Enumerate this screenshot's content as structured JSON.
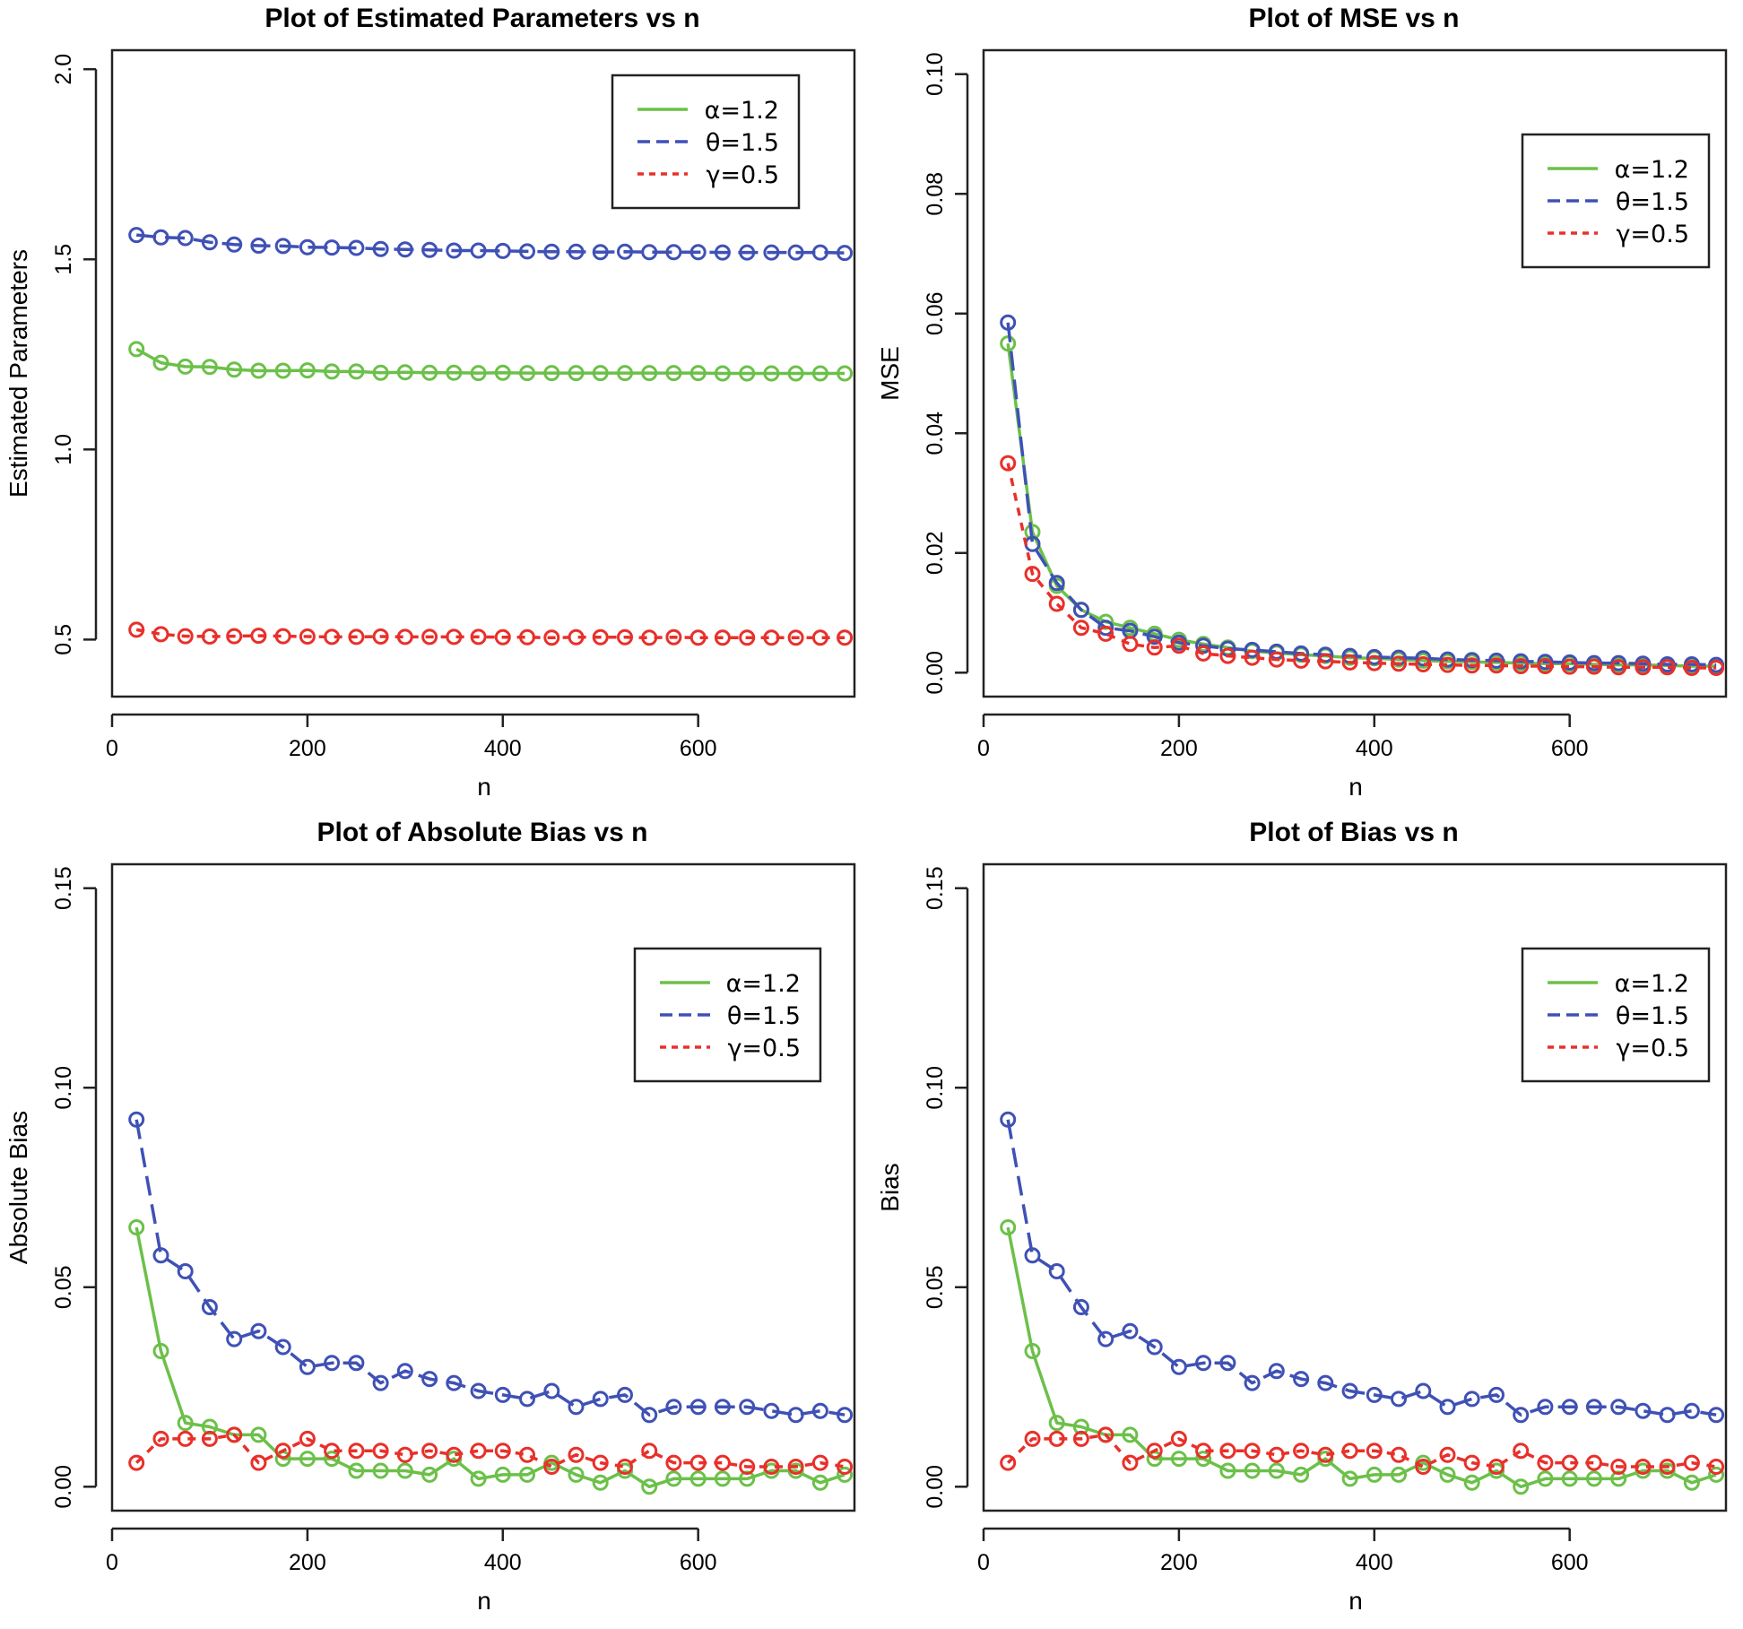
{
  "chart_data": [
    {
      "type": "line",
      "title": "Plot of Estimated Parameters vs n",
      "xlabel": "n",
      "ylabel": "Estimated Parameters",
      "xlim": [
        0,
        760
      ],
      "ylim": [
        0.35,
        2.05
      ],
      "xticks": [
        0,
        200,
        400,
        600
      ],
      "xtick_labels": [
        "0",
        "200",
        "400",
        "600"
      ],
      "yticks": [
        0.5,
        1.0,
        1.5,
        2.0
      ],
      "ytick_labels": [
        "0.5",
        "1.0",
        "1.5",
        "2.0"
      ],
      "legend_position": "top-right",
      "x": [
        25,
        50,
        75,
        100,
        125,
        150,
        175,
        200,
        225,
        250,
        275,
        300,
        325,
        350,
        375,
        400,
        425,
        450,
        475,
        500,
        525,
        550,
        575,
        600,
        625,
        650,
        675,
        700,
        725,
        750
      ],
      "series": [
        {
          "name": "α=1.2",
          "color": "#6cc04a",
          "dash": "solid",
          "values": [
            1.264,
            1.228,
            1.218,
            1.217,
            1.21,
            1.207,
            1.207,
            1.208,
            1.205,
            1.205,
            1.202,
            1.203,
            1.202,
            1.202,
            1.201,
            1.202,
            1.201,
            1.201,
            1.201,
            1.201,
            1.201,
            1.201,
            1.201,
            1.201,
            1.2,
            1.2,
            1.2,
            1.2,
            1.2,
            1.2
          ]
        },
        {
          "name": "θ=1.5",
          "color": "#3f51b5",
          "dash": "long",
          "values": [
            1.564,
            1.558,
            1.556,
            1.545,
            1.539,
            1.536,
            1.535,
            1.532,
            1.531,
            1.53,
            1.527,
            1.526,
            1.525,
            1.523,
            1.523,
            1.522,
            1.521,
            1.52,
            1.52,
            1.519,
            1.52,
            1.519,
            1.519,
            1.519,
            1.518,
            1.518,
            1.518,
            1.518,
            1.518,
            1.517
          ]
        },
        {
          "name": "γ=0.5",
          "color": "#e8302a",
          "dash": "short",
          "values": [
            0.526,
            0.514,
            0.509,
            0.508,
            0.509,
            0.51,
            0.509,
            0.508,
            0.507,
            0.507,
            0.508,
            0.507,
            0.507,
            0.507,
            0.507,
            0.506,
            0.506,
            0.505,
            0.506,
            0.506,
            0.506,
            0.505,
            0.506,
            0.505,
            0.505,
            0.505,
            0.505,
            0.505,
            0.505,
            0.505
          ]
        }
      ]
    },
    {
      "type": "line",
      "title": "Plot of MSE vs n",
      "xlabel": "n",
      "ylabel": "MSE",
      "xlim": [
        0,
        760
      ],
      "ylim": [
        -0.004,
        0.104
      ],
      "xticks": [
        0,
        200,
        400,
        600
      ],
      "xtick_labels": [
        "0",
        "200",
        "400",
        "600"
      ],
      "yticks": [
        0.0,
        0.02,
        0.04,
        0.06,
        0.08,
        0.1
      ],
      "ytick_labels": [
        "0.00",
        "0.02",
        "0.04",
        "0.06",
        "0.08",
        "0.10"
      ],
      "legend_position": "top-right",
      "x": [
        25,
        50,
        75,
        100,
        125,
        150,
        175,
        200,
        225,
        250,
        275,
        300,
        325,
        350,
        375,
        400,
        425,
        450,
        475,
        500,
        525,
        550,
        575,
        600,
        625,
        650,
        675,
        700,
        725,
        750
      ],
      "series": [
        {
          "name": "α=1.2",
          "color": "#6cc04a",
          "dash": "solid",
          "values": [
            0.055,
            0.0235,
            0.0145,
            0.0105,
            0.0085,
            0.0075,
            0.0065,
            0.0055,
            0.0048,
            0.0042,
            0.0036,
            0.0033,
            0.003,
            0.0028,
            0.0025,
            0.0024,
            0.0022,
            0.002,
            0.0019,
            0.0018,
            0.0017,
            0.0016,
            0.0015,
            0.0015,
            0.0014,
            0.0013,
            0.0013,
            0.0012,
            0.0011,
            0.0011
          ]
        },
        {
          "name": "θ=1.5",
          "color": "#3f51b5",
          "dash": "long",
          "values": [
            0.0585,
            0.0215,
            0.015,
            0.0105,
            0.0075,
            0.007,
            0.006,
            0.005,
            0.0045,
            0.004,
            0.0038,
            0.0035,
            0.0032,
            0.003,
            0.0028,
            0.0026,
            0.0025,
            0.0024,
            0.0022,
            0.0021,
            0.002,
            0.0019,
            0.0018,
            0.0017,
            0.0016,
            0.0016,
            0.0015,
            0.0014,
            0.0014,
            0.0013
          ]
        },
        {
          "name": "γ=0.5",
          "color": "#e8302a",
          "dash": "short",
          "values": [
            0.035,
            0.0165,
            0.0115,
            0.0075,
            0.0065,
            0.0048,
            0.0042,
            0.0045,
            0.0032,
            0.0028,
            0.0025,
            0.0022,
            0.002,
            0.0019,
            0.0017,
            0.0016,
            0.0015,
            0.0014,
            0.0013,
            0.0012,
            0.0012,
            0.0011,
            0.0011,
            0.001,
            0.001,
            0.0009,
            0.0009,
            0.0009,
            0.0008,
            0.0008
          ]
        }
      ]
    },
    {
      "type": "line",
      "title": "Plot of Absolute Bias vs n",
      "xlabel": "n",
      "ylabel": "Absolute Bias",
      "xlim": [
        0,
        760
      ],
      "ylim": [
        -0.006,
        0.156
      ],
      "xticks": [
        0,
        200,
        400,
        600
      ],
      "xtick_labels": [
        "0",
        "200",
        "400",
        "600"
      ],
      "yticks": [
        0.0,
        0.05,
        0.1,
        0.15
      ],
      "ytick_labels": [
        "0.00",
        "0.05",
        "0.10",
        "0.15"
      ],
      "legend_position": "top-right",
      "x": [
        25,
        50,
        75,
        100,
        125,
        150,
        175,
        200,
        225,
        250,
        275,
        300,
        325,
        350,
        375,
        400,
        425,
        450,
        475,
        500,
        525,
        550,
        575,
        600,
        625,
        650,
        675,
        700,
        725,
        750
      ],
      "series": [
        {
          "name": "α=1.2",
          "color": "#6cc04a",
          "dash": "solid",
          "values": [
            0.065,
            0.034,
            0.016,
            0.015,
            0.013,
            0.013,
            0.007,
            0.007,
            0.007,
            0.004,
            0.004,
            0.004,
            0.003,
            0.007,
            0.002,
            0.003,
            0.003,
            0.006,
            0.003,
            0.001,
            0.004,
            0.0,
            0.002,
            0.002,
            0.002,
            0.002,
            0.004,
            0.004,
            0.001,
            0.003
          ]
        },
        {
          "name": "θ=1.5",
          "color": "#3f51b5",
          "dash": "long",
          "values": [
            0.092,
            0.058,
            0.054,
            0.045,
            0.037,
            0.039,
            0.035,
            0.03,
            0.031,
            0.031,
            0.026,
            0.029,
            0.027,
            0.026,
            0.024,
            0.023,
            0.022,
            0.024,
            0.02,
            0.022,
            0.023,
            0.018,
            0.02,
            0.02,
            0.02,
            0.02,
            0.019,
            0.018,
            0.019,
            0.018
          ]
        },
        {
          "name": "γ=0.5",
          "color": "#e8302a",
          "dash": "short",
          "values": [
            0.006,
            0.012,
            0.012,
            0.012,
            0.013,
            0.006,
            0.009,
            0.012,
            0.009,
            0.009,
            0.009,
            0.008,
            0.009,
            0.008,
            0.009,
            0.009,
            0.008,
            0.005,
            0.008,
            0.006,
            0.005,
            0.009,
            0.006,
            0.006,
            0.006,
            0.005,
            0.005,
            0.005,
            0.006,
            0.005
          ]
        }
      ]
    },
    {
      "type": "line",
      "title": "Plot of Bias vs n",
      "xlabel": "n",
      "ylabel": "Bias",
      "xlim": [
        0,
        760
      ],
      "ylim": [
        -0.006,
        0.156
      ],
      "xticks": [
        0,
        200,
        400,
        600
      ],
      "xtick_labels": [
        "0",
        "200",
        "400",
        "600"
      ],
      "yticks": [
        0.0,
        0.05,
        0.1,
        0.15
      ],
      "ytick_labels": [
        "0.00",
        "0.05",
        "0.10",
        "0.15"
      ],
      "legend_position": "top-right",
      "x": [
        25,
        50,
        75,
        100,
        125,
        150,
        175,
        200,
        225,
        250,
        275,
        300,
        325,
        350,
        375,
        400,
        425,
        450,
        475,
        500,
        525,
        550,
        575,
        600,
        625,
        650,
        675,
        700,
        725,
        750
      ],
      "series": [
        {
          "name": "α=1.2",
          "color": "#6cc04a",
          "dash": "solid",
          "values": [
            0.065,
            0.034,
            0.016,
            0.015,
            0.013,
            0.013,
            0.007,
            0.007,
            0.007,
            0.004,
            0.004,
            0.004,
            0.003,
            0.007,
            0.002,
            0.003,
            0.003,
            0.006,
            0.003,
            0.001,
            0.004,
            0.0,
            0.002,
            0.002,
            0.002,
            0.002,
            0.004,
            0.004,
            0.001,
            0.003
          ]
        },
        {
          "name": "θ=1.5",
          "color": "#3f51b5",
          "dash": "long",
          "values": [
            0.092,
            0.058,
            0.054,
            0.045,
            0.037,
            0.039,
            0.035,
            0.03,
            0.031,
            0.031,
            0.026,
            0.029,
            0.027,
            0.026,
            0.024,
            0.023,
            0.022,
            0.024,
            0.02,
            0.022,
            0.023,
            0.018,
            0.02,
            0.02,
            0.02,
            0.02,
            0.019,
            0.018,
            0.019,
            0.018
          ]
        },
        {
          "name": "γ=0.5",
          "color": "#e8302a",
          "dash": "short",
          "values": [
            0.006,
            0.012,
            0.012,
            0.012,
            0.013,
            0.006,
            0.009,
            0.012,
            0.009,
            0.009,
            0.009,
            0.008,
            0.009,
            0.008,
            0.009,
            0.009,
            0.008,
            0.005,
            0.008,
            0.006,
            0.005,
            0.009,
            0.006,
            0.006,
            0.006,
            0.005,
            0.005,
            0.005,
            0.006,
            0.005
          ]
        }
      ]
    }
  ]
}
